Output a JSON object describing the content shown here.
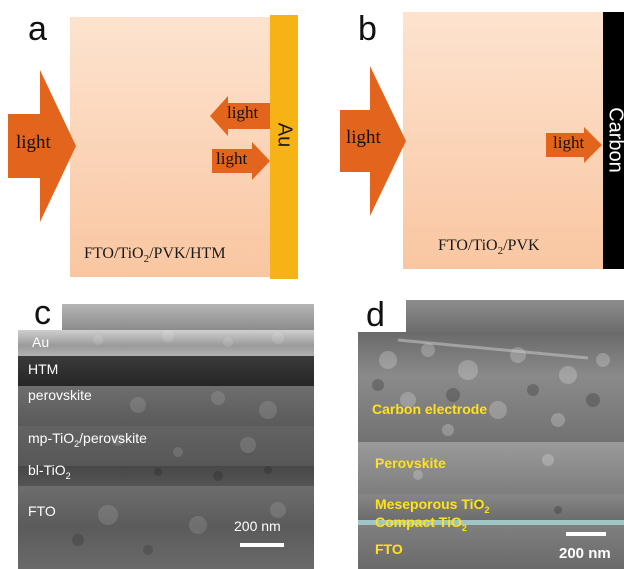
{
  "panel_a": {
    "letter": "a",
    "big_arrow_label": "light",
    "reflect_arrow_label": "light",
    "incoming_arrow_label": "light",
    "electrode_label": "Au",
    "stack_prefix": "FTO/TiO",
    "stack_sub": "2",
    "stack_suffix": "/PVK/HTM",
    "colors": {
      "electrode": "#f7b216",
      "arrow": "#e3641c"
    }
  },
  "panel_b": {
    "letter": "b",
    "big_arrow_label": "light",
    "small_arrow_label": "light",
    "electrode_label": "Carbon",
    "stack_prefix": "FTO/TiO",
    "stack_sub": "2",
    "stack_suffix": "/PVK",
    "colors": {
      "electrode": "#000000",
      "arrow": "#e3641c"
    }
  },
  "panel_c": {
    "letter": "c",
    "layers": {
      "au": "Au",
      "htm": "HTM",
      "perovskite": "perovskite",
      "mp_prefix": "mp-TiO",
      "mp_sub": "2",
      "mp_suffix": "/perovskite",
      "bl_prefix": "bl-TiO",
      "bl_sub": "2",
      "fto": "FTO"
    },
    "scale_bar": "200 nm"
  },
  "panel_d": {
    "letter": "d",
    "layers": {
      "carbon": "Carbon electrode",
      "perovskite": "Perovskite",
      "meso_prefix": "Meseporous TiO",
      "meso_sub": "2",
      "compact_prefix": "Compact TiO",
      "compact_sub": "2",
      "fto": "FTO"
    },
    "scale_bar": "200 nm",
    "colors": {
      "label": "#ffe21a"
    }
  }
}
